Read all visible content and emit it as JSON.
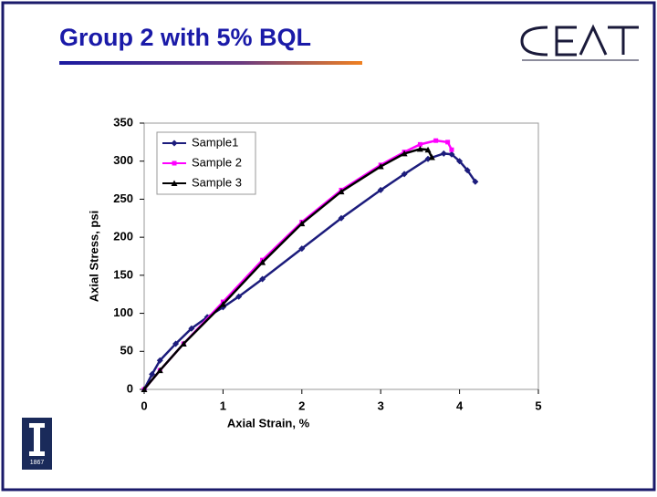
{
  "slide_title": "Group 2 with 5% BQL",
  "logo_year": "1867",
  "chart_data": {
    "type": "line",
    "xlabel": "Axial Strain, %",
    "ylabel": "Axial Stress, psi",
    "xlim": [
      0,
      5
    ],
    "ylim": [
      0,
      350
    ],
    "xticks": [
      0,
      1,
      2,
      3,
      4,
      5
    ],
    "yticks": [
      0,
      50,
      100,
      150,
      200,
      250,
      300,
      350
    ],
    "grid": false,
    "legend": "upper left",
    "series": [
      {
        "name": "Sample1",
        "color": "#1c1c7c",
        "marker": "diamond",
        "x": [
          0,
          0.1,
          0.2,
          0.4,
          0.6,
          0.8,
          1.0,
          1.2,
          1.5,
          2.0,
          2.5,
          3.0,
          3.3,
          3.6,
          3.8,
          3.9,
          4.0,
          4.1,
          4.2
        ],
        "values": [
          0,
          20,
          38,
          60,
          80,
          95,
          108,
          122,
          145,
          185,
          225,
          262,
          283,
          303,
          310,
          309,
          300,
          288,
          273
        ]
      },
      {
        "name": "Sample 2",
        "color": "#ff00ff",
        "marker": "square",
        "x": [
          0,
          0.2,
          0.5,
          1.0,
          1.5,
          2.0,
          2.5,
          3.0,
          3.3,
          3.5,
          3.7,
          3.85,
          3.9
        ],
        "values": [
          0,
          25,
          60,
          115,
          170,
          220,
          262,
          295,
          312,
          322,
          327,
          325,
          315
        ]
      },
      {
        "name": "Sample 3",
        "color": "#000000",
        "marker": "triangle",
        "x": [
          0,
          0.2,
          0.5,
          1.0,
          1.5,
          2.0,
          2.5,
          3.0,
          3.3,
          3.5,
          3.6,
          3.65
        ],
        "values": [
          0,
          25,
          60,
          112,
          167,
          218,
          260,
          293,
          310,
          316,
          315,
          305
        ]
      }
    ]
  }
}
